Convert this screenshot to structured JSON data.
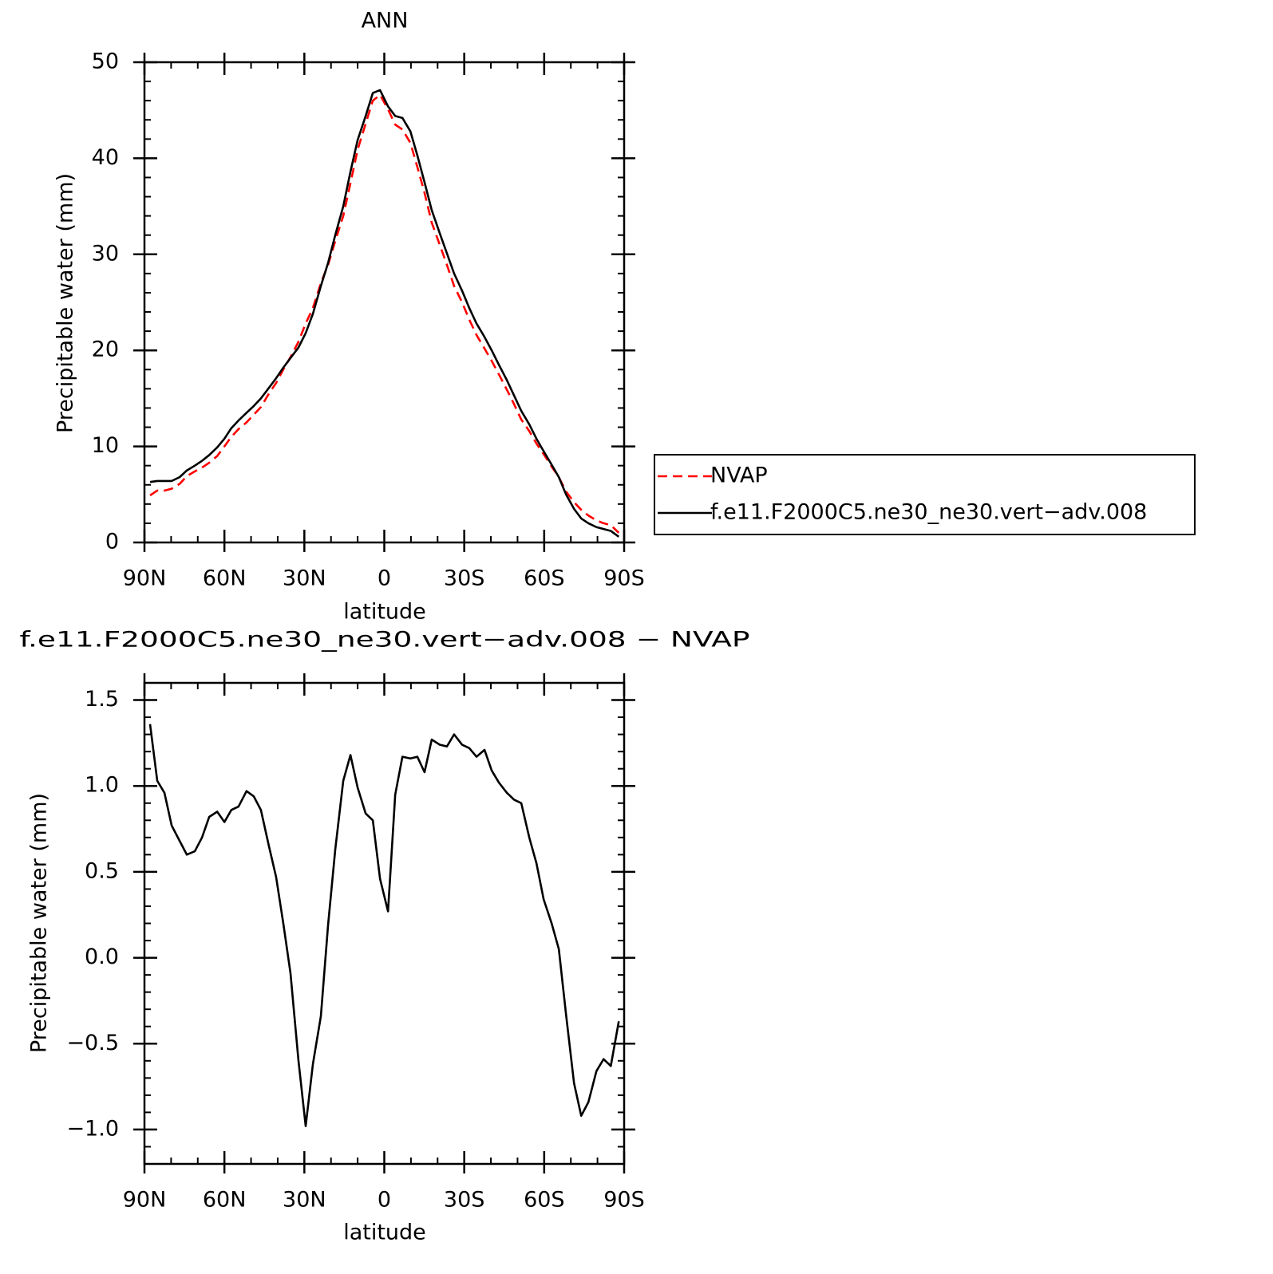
{
  "chart_data": [
    {
      "type": "line",
      "title": "ANN",
      "xlabel": "latitude",
      "ylabel": "Precipitable water (mm)",
      "x": [
        87.9,
        85.2,
        82.5,
        79.8,
        76.8,
        74.1,
        71.1,
        68.4,
        65.7,
        62.7,
        60.0,
        57.4,
        54.7,
        51.7,
        49.0,
        46.3,
        43.3,
        40.6,
        37.9,
        35.2,
        32.2,
        29.5,
        26.8,
        23.8,
        21.1,
        18.4,
        15.4,
        12.7,
        10.0,
        7.0,
        4.3,
        1.6,
        -1.4,
        -4.1,
        -6.8,
        -9.8,
        -12.4,
        -15.1,
        -17.8,
        -20.8,
        -23.5,
        -26.2,
        -29.2,
        -31.9,
        -34.6,
        -37.6,
        -40.3,
        -43.0,
        -46.0,
        -48.7,
        -51.4,
        -54.4,
        -57.1,
        -59.8,
        -62.8,
        -65.5,
        -68.2,
        -71.2,
        -73.9,
        -76.6,
        -79.6,
        -82.3,
        -85.0,
        -88.0
      ],
      "series": [
        {
          "name": "NVAP",
          "color": "#ff0000",
          "linestyle": "dashed",
          "values": [
            4.9,
            5.4,
            5.4,
            5.6,
            6.1,
            6.9,
            7.4,
            7.8,
            8.3,
            9.0,
            10.0,
            11.0,
            11.8,
            12.5,
            13.3,
            14.1,
            15.5,
            16.6,
            18.0,
            19.3,
            20.9,
            22.8,
            24.4,
            27.0,
            28.9,
            31.4,
            34.0,
            37.4,
            40.9,
            43.6,
            46.0,
            46.6,
            45.1,
            43.5,
            43.0,
            41.6,
            39.1,
            36.4,
            33.3,
            31.0,
            28.9,
            26.7,
            25.0,
            23.2,
            21.6,
            20.2,
            18.9,
            17.5,
            15.9,
            14.4,
            12.8,
            11.6,
            10.3,
            9.2,
            7.9,
            6.8,
            5.3,
            4.2,
            3.4,
            2.8,
            2.3,
            2.0,
            1.8,
            1.0
          ]
        },
        {
          "name": "f.e11.F2000C5.ne30_ne30.vert−adv.008",
          "color": "#000000",
          "linestyle": "solid",
          "values": [
            6.3,
            6.4,
            6.4,
            6.4,
            6.8,
            7.5,
            8.0,
            8.5,
            9.1,
            9.9,
            10.8,
            11.9,
            12.7,
            13.5,
            14.2,
            15.0,
            16.1,
            17.1,
            18.2,
            19.2,
            20.3,
            21.8,
            23.8,
            26.7,
            29.1,
            32.0,
            35.0,
            38.6,
            41.9,
            44.4,
            46.8,
            47.1,
            45.4,
            44.4,
            44.2,
            42.8,
            40.3,
            37.5,
            34.6,
            32.2,
            30.1,
            28.0,
            26.2,
            24.4,
            22.8,
            21.4,
            20.0,
            18.5,
            16.9,
            15.3,
            13.7,
            12.3,
            10.8,
            9.5,
            8.1,
            6.8,
            5.0,
            3.5,
            2.5,
            2.0,
            1.6,
            1.4,
            1.2,
            0.6
          ]
        }
      ],
      "xlim": [
        90,
        -90
      ],
      "xticks": [
        {
          "value": 90,
          "label": "90N"
        },
        {
          "value": 60,
          "label": "60N"
        },
        {
          "value": 30,
          "label": "30N"
        },
        0,
        {
          "value": -30,
          "label": "30S"
        },
        {
          "value": -60,
          "label": "60S"
        },
        {
          "value": -90,
          "label": "90S"
        }
      ],
      "ylim": [
        0,
        50
      ],
      "yticks": [
        0,
        10,
        20,
        30,
        40,
        50
      ],
      "legend": "right"
    },
    {
      "type": "line",
      "title": "f.e11.F2000C5.ne30_ne30.vert−adv.008 − NVAP",
      "xlabel": "latitude",
      "ylabel": "Precipitable water (mm)",
      "x": [
        87.9,
        85.2,
        82.5,
        79.8,
        76.8,
        74.1,
        71.1,
        68.4,
        65.7,
        62.7,
        60.0,
        57.4,
        54.7,
        51.7,
        49.0,
        46.3,
        43.3,
        40.6,
        37.9,
        35.2,
        32.2,
        29.5,
        26.8,
        23.8,
        21.1,
        18.4,
        15.4,
        12.7,
        10.0,
        7.0,
        4.3,
        1.6,
        -1.4,
        -4.1,
        -6.8,
        -9.8,
        -12.4,
        -15.1,
        -17.8,
        -20.8,
        -23.5,
        -26.2,
        -29.2,
        -31.9,
        -34.6,
        -37.6,
        -40.3,
        -43.0,
        -46.0,
        -48.7,
        -51.4,
        -54.4,
        -57.1,
        -59.8,
        -62.8,
        -65.5,
        -68.2,
        -71.2,
        -73.9,
        -76.6,
        -79.6,
        -82.3,
        -85.0,
        -88.0
      ],
      "values": [
        1.36,
        1.03,
        0.96,
        0.77,
        0.68,
        0.6,
        0.62,
        0.7,
        0.82,
        0.85,
        0.79,
        0.86,
        0.88,
        0.97,
        0.94,
        0.86,
        0.65,
        0.47,
        0.2,
        -0.09,
        -0.6,
        -0.98,
        -0.62,
        -0.34,
        0.19,
        0.63,
        1.03,
        1.18,
        0.99,
        0.84,
        0.8,
        0.46,
        0.27,
        0.95,
        1.17,
        1.16,
        1.17,
        1.08,
        1.27,
        1.24,
        1.23,
        1.3,
        1.24,
        1.22,
        1.17,
        1.21,
        1.09,
        1.02,
        0.96,
        0.92,
        0.9,
        0.7,
        0.55,
        0.34,
        0.2,
        0.05,
        -0.33,
        -0.73,
        -0.92,
        -0.84,
        -0.66,
        -0.59,
        -0.63,
        -0.37
      ],
      "color": "#000000",
      "linestyle": "solid",
      "xlim": [
        90,
        -90
      ],
      "xticks": [
        {
          "value": 90,
          "label": "90N"
        },
        {
          "value": 60,
          "label": "60N"
        },
        {
          "value": 30,
          "label": "30N"
        },
        0,
        {
          "value": -30,
          "label": "30S"
        },
        {
          "value": -60,
          "label": "60S"
        },
        {
          "value": -90,
          "label": "90S"
        }
      ],
      "ylim": [
        -1.2,
        1.6
      ],
      "yticks": [
        {
          "value": -1,
          "label": "−1.0"
        },
        {
          "value": -0.5,
          "label": "−0.5"
        },
        {
          "value": 0,
          "label": "0.0"
        },
        0.5,
        {
          "value": 1,
          "label": "1.0"
        },
        1.5
      ]
    }
  ]
}
